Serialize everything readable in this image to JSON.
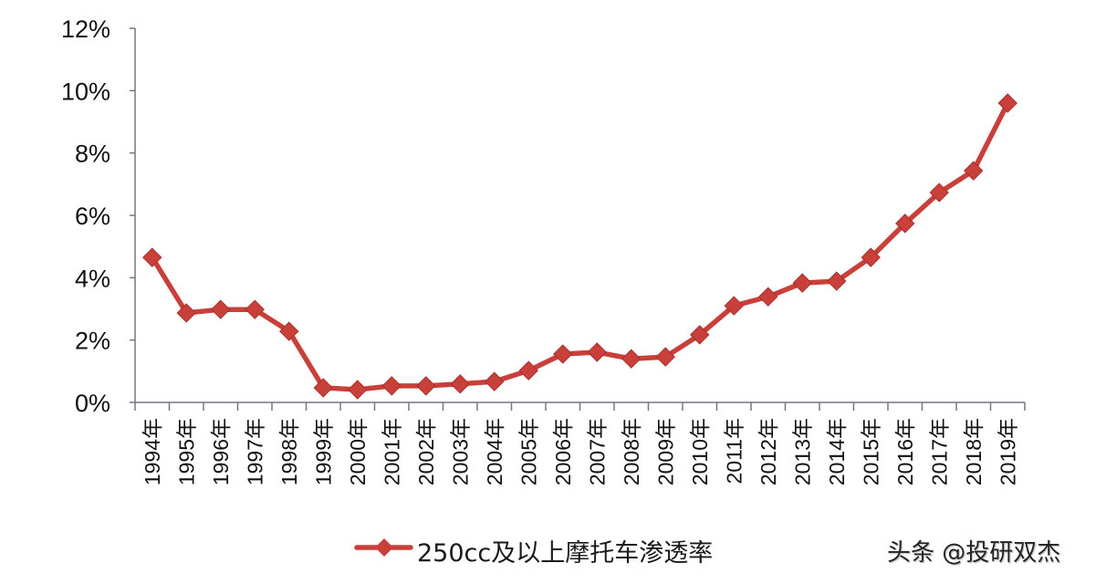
{
  "chart_data": {
    "type": "line",
    "title": "",
    "xlabel": "",
    "ylabel": "",
    "ylim": [
      0,
      12
    ],
    "y_tick_labels": [
      "0%",
      "2%",
      "4%",
      "6%",
      "8%",
      "10%",
      "12%"
    ],
    "y_ticks": [
      0,
      2,
      4,
      6,
      8,
      10,
      12
    ],
    "grid": false,
    "legend_position": "bottom",
    "categories": [
      "1994年",
      "1995年",
      "1996年",
      "1997年",
      "1998年",
      "1999年",
      "2000年",
      "2001年",
      "2002年",
      "2003年",
      "2004年",
      "2005年",
      "2006年",
      "2007年",
      "2008年",
      "2009年",
      "2010年",
      "2011年",
      "2012年",
      "2013年",
      "2014年",
      "2015年",
      "2016年",
      "2017年",
      "2018年",
      "2019年"
    ],
    "series": [
      {
        "name": "250cc及以上摩托车渗透率",
        "color": "#c9403a",
        "marker": "diamond",
        "unit": "%",
        "values": [
          4.65,
          2.87,
          2.98,
          2.98,
          2.28,
          0.47,
          0.41,
          0.53,
          0.53,
          0.59,
          0.67,
          1.02,
          1.55,
          1.61,
          1.4,
          1.46,
          2.17,
          3.1,
          3.39,
          3.83,
          3.89,
          4.65,
          5.74,
          6.73,
          7.43,
          9.6
        ]
      }
    ]
  },
  "legend": {
    "label": "250cc及以上摩托车渗透率"
  },
  "watermark": {
    "text": "头条 @投研双杰"
  }
}
